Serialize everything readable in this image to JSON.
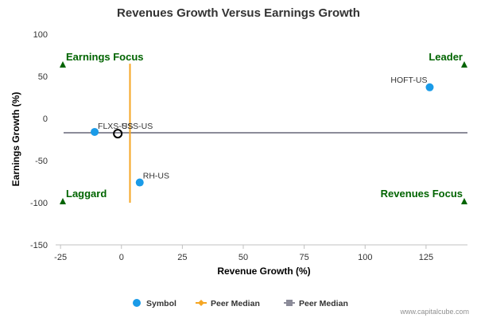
{
  "chart_data": {
    "type": "scatter",
    "title": "Revenues Growth Versus Earnings Growth",
    "xlabel": "Revenue Growth (%)",
    "ylabel": "Earnings Growth (%)",
    "xlim": [
      -27,
      142
    ],
    "ylim": [
      -150,
      100
    ],
    "x_ticks": [
      -25,
      0,
      25,
      50,
      75,
      100,
      125
    ],
    "y_ticks": [
      100,
      50,
      0,
      -50,
      -100,
      -150
    ],
    "grid": false,
    "points": [
      {
        "label": "HOFT-US",
        "x": 126.5,
        "y": 37
      },
      {
        "label": "FLXS-US",
        "x": -11,
        "y": -16
      },
      {
        "label": "RH-US",
        "x": 7.5,
        "y": -76
      }
    ],
    "subject": {
      "label": "SSS-US",
      "x": -1.5,
      "y": -18
    },
    "peer_median_revenue": 3.5,
    "peer_median_earnings": -17,
    "quadrants": [
      {
        "label": "Earnings Focus",
        "position": "top-left"
      },
      {
        "label": "Leader",
        "position": "top-right"
      },
      {
        "label": "Laggard",
        "position": "bottom-left"
      },
      {
        "label": "Revenues Focus",
        "position": "bottom-right"
      }
    ],
    "legend": [
      {
        "label": "Symbol",
        "kind": "dot",
        "color": "#1a9be8"
      },
      {
        "label": "Peer Median",
        "kind": "line-diamond",
        "color": "#f5a623"
      },
      {
        "label": "Peer Median",
        "kind": "line-square",
        "color": "#8c8c99"
      }
    ],
    "legend_position": "bottom-center",
    "colors": {
      "point": "#1a9be8",
      "subject_ring": "#000000",
      "median_x": "#f5a623",
      "median_y": "#8c8c99",
      "quadrant_text": "#006400",
      "marker": "#006400"
    }
  },
  "credit": "www.capitalcube.com"
}
